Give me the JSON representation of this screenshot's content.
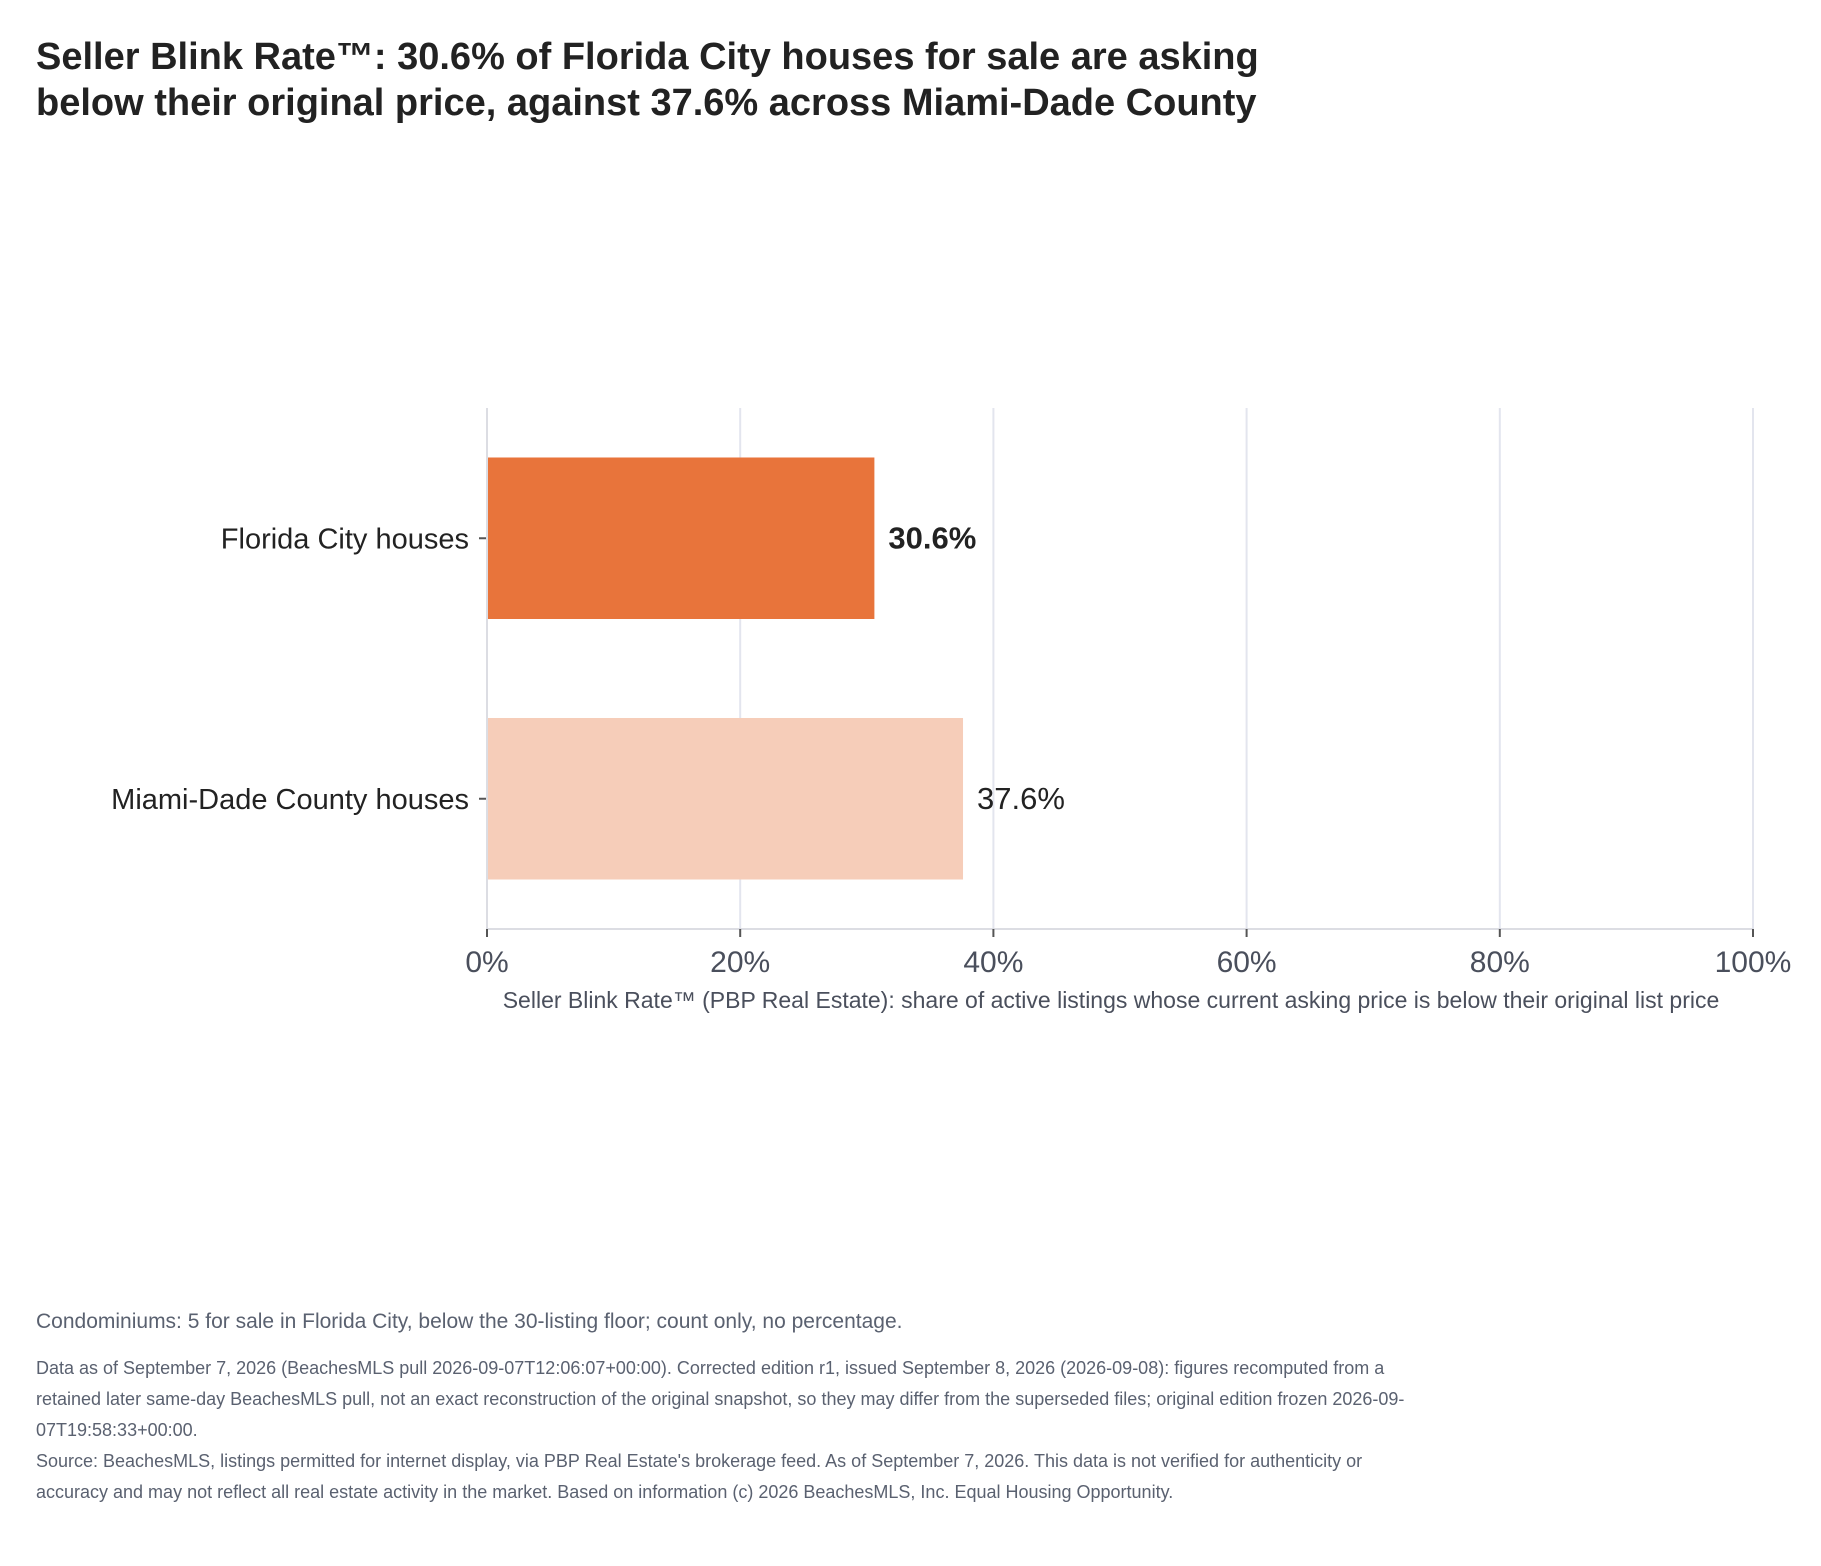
{
  "title": "Seller Blink Rate™: 30.6% of Florida City houses for sale are asking below their original price, against 37.6% across Miami-Dade County",
  "chart_data": {
    "type": "bar",
    "orientation": "horizontal",
    "categories": [
      "Florida City houses",
      "Miami-Dade County houses"
    ],
    "values": [
      30.6,
      37.6
    ],
    "value_labels": [
      "30.6%",
      "37.6%"
    ],
    "bar_colors": [
      "#e8743b",
      "#f6cdb9"
    ],
    "highlighted_label_index": 0,
    "xlabel": "Seller Blink Rate™ (PBP Real Estate): share of active listings whose current asking price is below their original list price",
    "ylabel": "",
    "xlim": [
      0,
      100
    ],
    "x_ticks": [
      0,
      20,
      40,
      60,
      80,
      100
    ],
    "x_tick_labels": [
      "0%",
      "20%",
      "40%",
      "60%",
      "80%",
      "100%"
    ],
    "grid": "vertical",
    "legend": "none"
  },
  "note": "Condominiums: 5 for sale in Florida City, below the 30-listing floor; count only, no percentage.",
  "footnote": {
    "data_line": "Data as of September 7, 2026 (BeachesMLS pull 2026-09-07T12:06:07+00:00). Corrected edition r1, issued September 8, 2026 (2026-09-08): figures recomputed from a retained later same-day BeachesMLS pull, not an exact reconstruction of the original snapshot, so they may differ from the superseded files; original edition frozen 2026-09-07T19:58:33+00:00.",
    "source_line": "Source: BeachesMLS, listings permitted for internet display, via PBP Real Estate's brokerage feed. As of September 7, 2026. This data is not verified for authenticity or accuracy and may not reflect all real estate activity in the market. Based on information (c) 2026 BeachesMLS, Inc. Equal Housing Opportunity."
  }
}
